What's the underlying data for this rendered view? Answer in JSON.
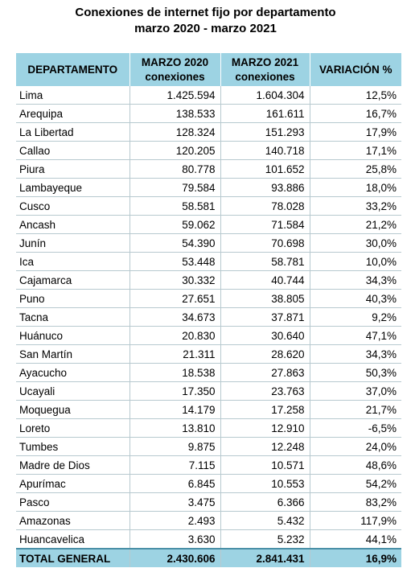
{
  "chart_data": {
    "type": "table",
    "title_line1": "Conexiones de internet fijo por departamento",
    "title_line2": "marzo 2020 - marzo 2021",
    "header_fill": "#9dd3e3",
    "columns": [
      {
        "main": "DEPARTAMENTO",
        "sub": ""
      },
      {
        "main": "MARZO 2020",
        "sub": "conexiones"
      },
      {
        "main": "MARZO 2021",
        "sub": "conexiones"
      },
      {
        "main": "VARIACIÓN %",
        "sub": ""
      }
    ],
    "rows": [
      [
        "Lima",
        "1.425.594",
        "1.604.304",
        "12,5%"
      ],
      [
        "Arequipa",
        "138.533",
        "161.611",
        "16,7%"
      ],
      [
        "La Libertad",
        "128.324",
        "151.293",
        "17,9%"
      ],
      [
        "Callao",
        "120.205",
        "140.718",
        "17,1%"
      ],
      [
        "Piura",
        "80.778",
        "101.652",
        "25,8%"
      ],
      [
        "Lambayeque",
        "79.584",
        "93.886",
        "18,0%"
      ],
      [
        "Cusco",
        "58.581",
        "78.028",
        "33,2%"
      ],
      [
        "Ancash",
        "59.062",
        "71.584",
        "21,2%"
      ],
      [
        "Junín",
        "54.390",
        "70.698",
        "30,0%"
      ],
      [
        "Ica",
        "53.448",
        "58.781",
        "10,0%"
      ],
      [
        "Cajamarca",
        "30.332",
        "40.744",
        "34,3%"
      ],
      [
        "Puno",
        "27.651",
        "38.805",
        "40,3%"
      ],
      [
        "Tacna",
        "34.673",
        "37.871",
        "9,2%"
      ],
      [
        "Huánuco",
        "20.830",
        "30.640",
        "47,1%"
      ],
      [
        "San Martín",
        "21.311",
        "28.620",
        "34,3%"
      ],
      [
        "Ayacucho",
        "18.538",
        "27.863",
        "50,3%"
      ],
      [
        "Ucayali",
        "17.350",
        "23.763",
        "37,0%"
      ],
      [
        "Moquegua",
        "14.179",
        "17.258",
        "21,7%"
      ],
      [
        "Loreto",
        "13.810",
        "12.910",
        "-6,5%"
      ],
      [
        "Tumbes",
        "9.875",
        "12.248",
        "24,0%"
      ],
      [
        "Madre de Dios",
        "7.115",
        "10.571",
        "48,6%"
      ],
      [
        "Apurímac",
        "6.845",
        "10.553",
        "54,2%"
      ],
      [
        "Pasco",
        "3.475",
        "6.366",
        "83,2%"
      ],
      [
        "Amazonas",
        "2.493",
        "5.432",
        "117,9%"
      ],
      [
        "Huancavelica",
        "3.630",
        "5.232",
        "44,1%"
      ]
    ],
    "total": [
      "TOTAL GENERAL",
      "2.430.606",
      "2.841.431",
      "16,9%"
    ]
  }
}
